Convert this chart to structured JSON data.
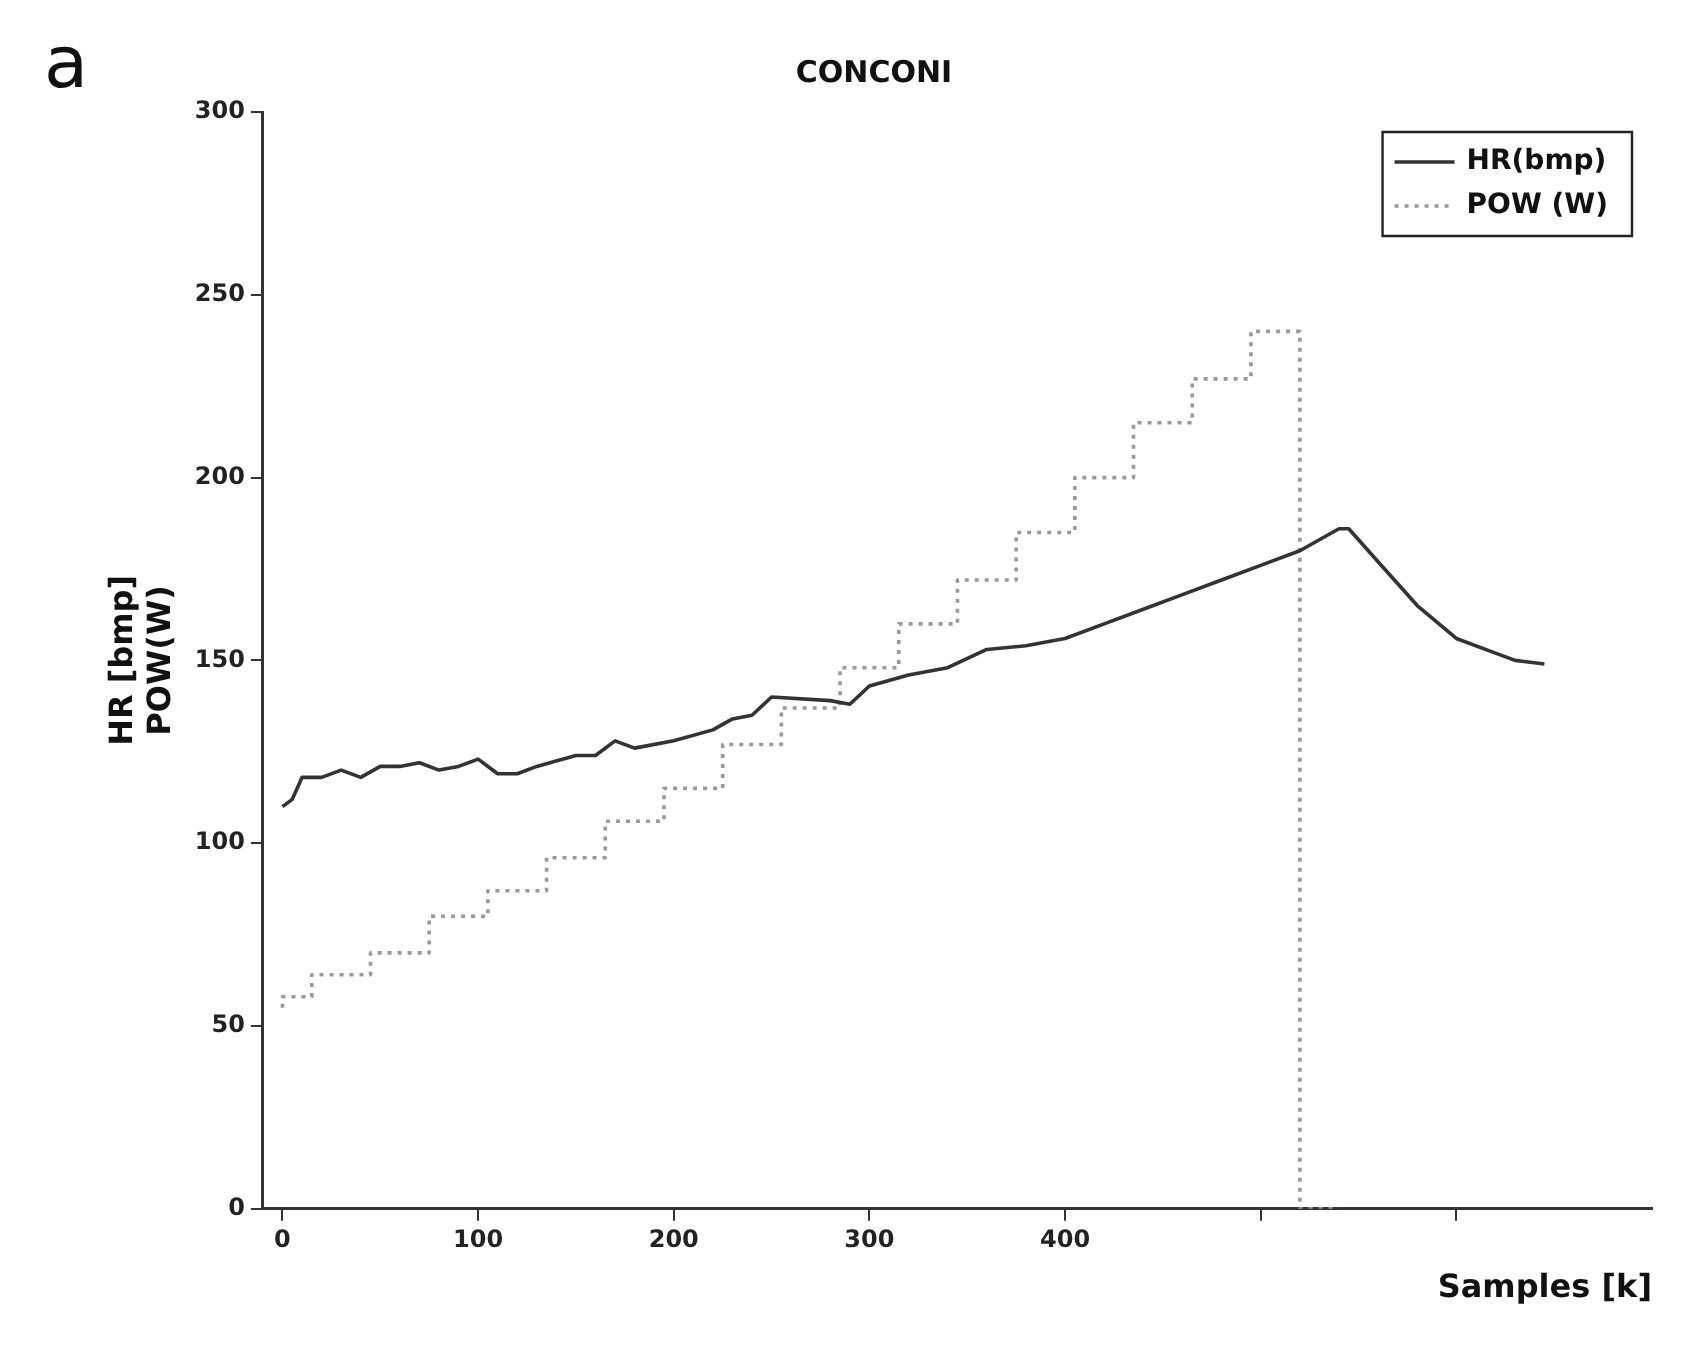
{
  "chart_data": {
    "type": "line",
    "title": "CONCONI",
    "xlabel": "Samples [k]",
    "ylabel": "HR [bmp]\nPOW(W)",
    "annotations": [
      "a"
    ],
    "xlim": [
      -10,
      700
    ],
    "xticks": [
      0,
      100,
      200,
      300,
      400,
      {
        "value": 500,
        "label": null
      },
      {
        "value": 600,
        "label": null
      }
    ],
    "ylim": [
      0,
      300
    ],
    "yticks": [
      0,
      50,
      100,
      150,
      200,
      250,
      300
    ],
    "grid": false,
    "legend": "top right",
    "marker": "none",
    "series": [
      {
        "name": "HR(bmp)",
        "color": "#333333",
        "line_style": "solid",
        "x": [
          0,
          5,
          10,
          20,
          30,
          40,
          50,
          60,
          70,
          80,
          90,
          100,
          110,
          120,
          130,
          150,
          160,
          170,
          180,
          200,
          220,
          230,
          240,
          250,
          280,
          290,
          300,
          320,
          340,
          360,
          380,
          400,
          420,
          440,
          460,
          480,
          500,
          520,
          540,
          545,
          560,
          580,
          600,
          620,
          630,
          645
        ],
        "values": [
          110,
          112,
          118,
          118,
          120,
          118,
          121,
          121,
          122,
          120,
          121,
          123,
          119,
          119,
          121,
          124,
          124,
          128,
          126,
          128,
          131,
          134,
          135,
          140,
          139,
          138,
          143,
          146,
          148,
          153,
          154,
          156,
          160,
          164,
          168,
          172,
          176,
          180,
          186,
          186,
          177,
          165,
          156,
          152,
          150,
          149
        ]
      },
      {
        "name": "POW (W)",
        "color": "#999999",
        "type": "step",
        "line_style": "dotted",
        "x": [
          0,
          15,
          45,
          75,
          105,
          135,
          165,
          195,
          225,
          255,
          285,
          315,
          345,
          375,
          405,
          435,
          465,
          495,
          520,
          540
        ],
        "values": [
          55,
          58,
          64,
          70,
          80,
          87,
          96,
          106,
          115,
          127,
          137,
          148,
          160,
          172,
          185,
          200,
          215,
          227,
          240,
          0
        ]
      }
    ]
  }
}
